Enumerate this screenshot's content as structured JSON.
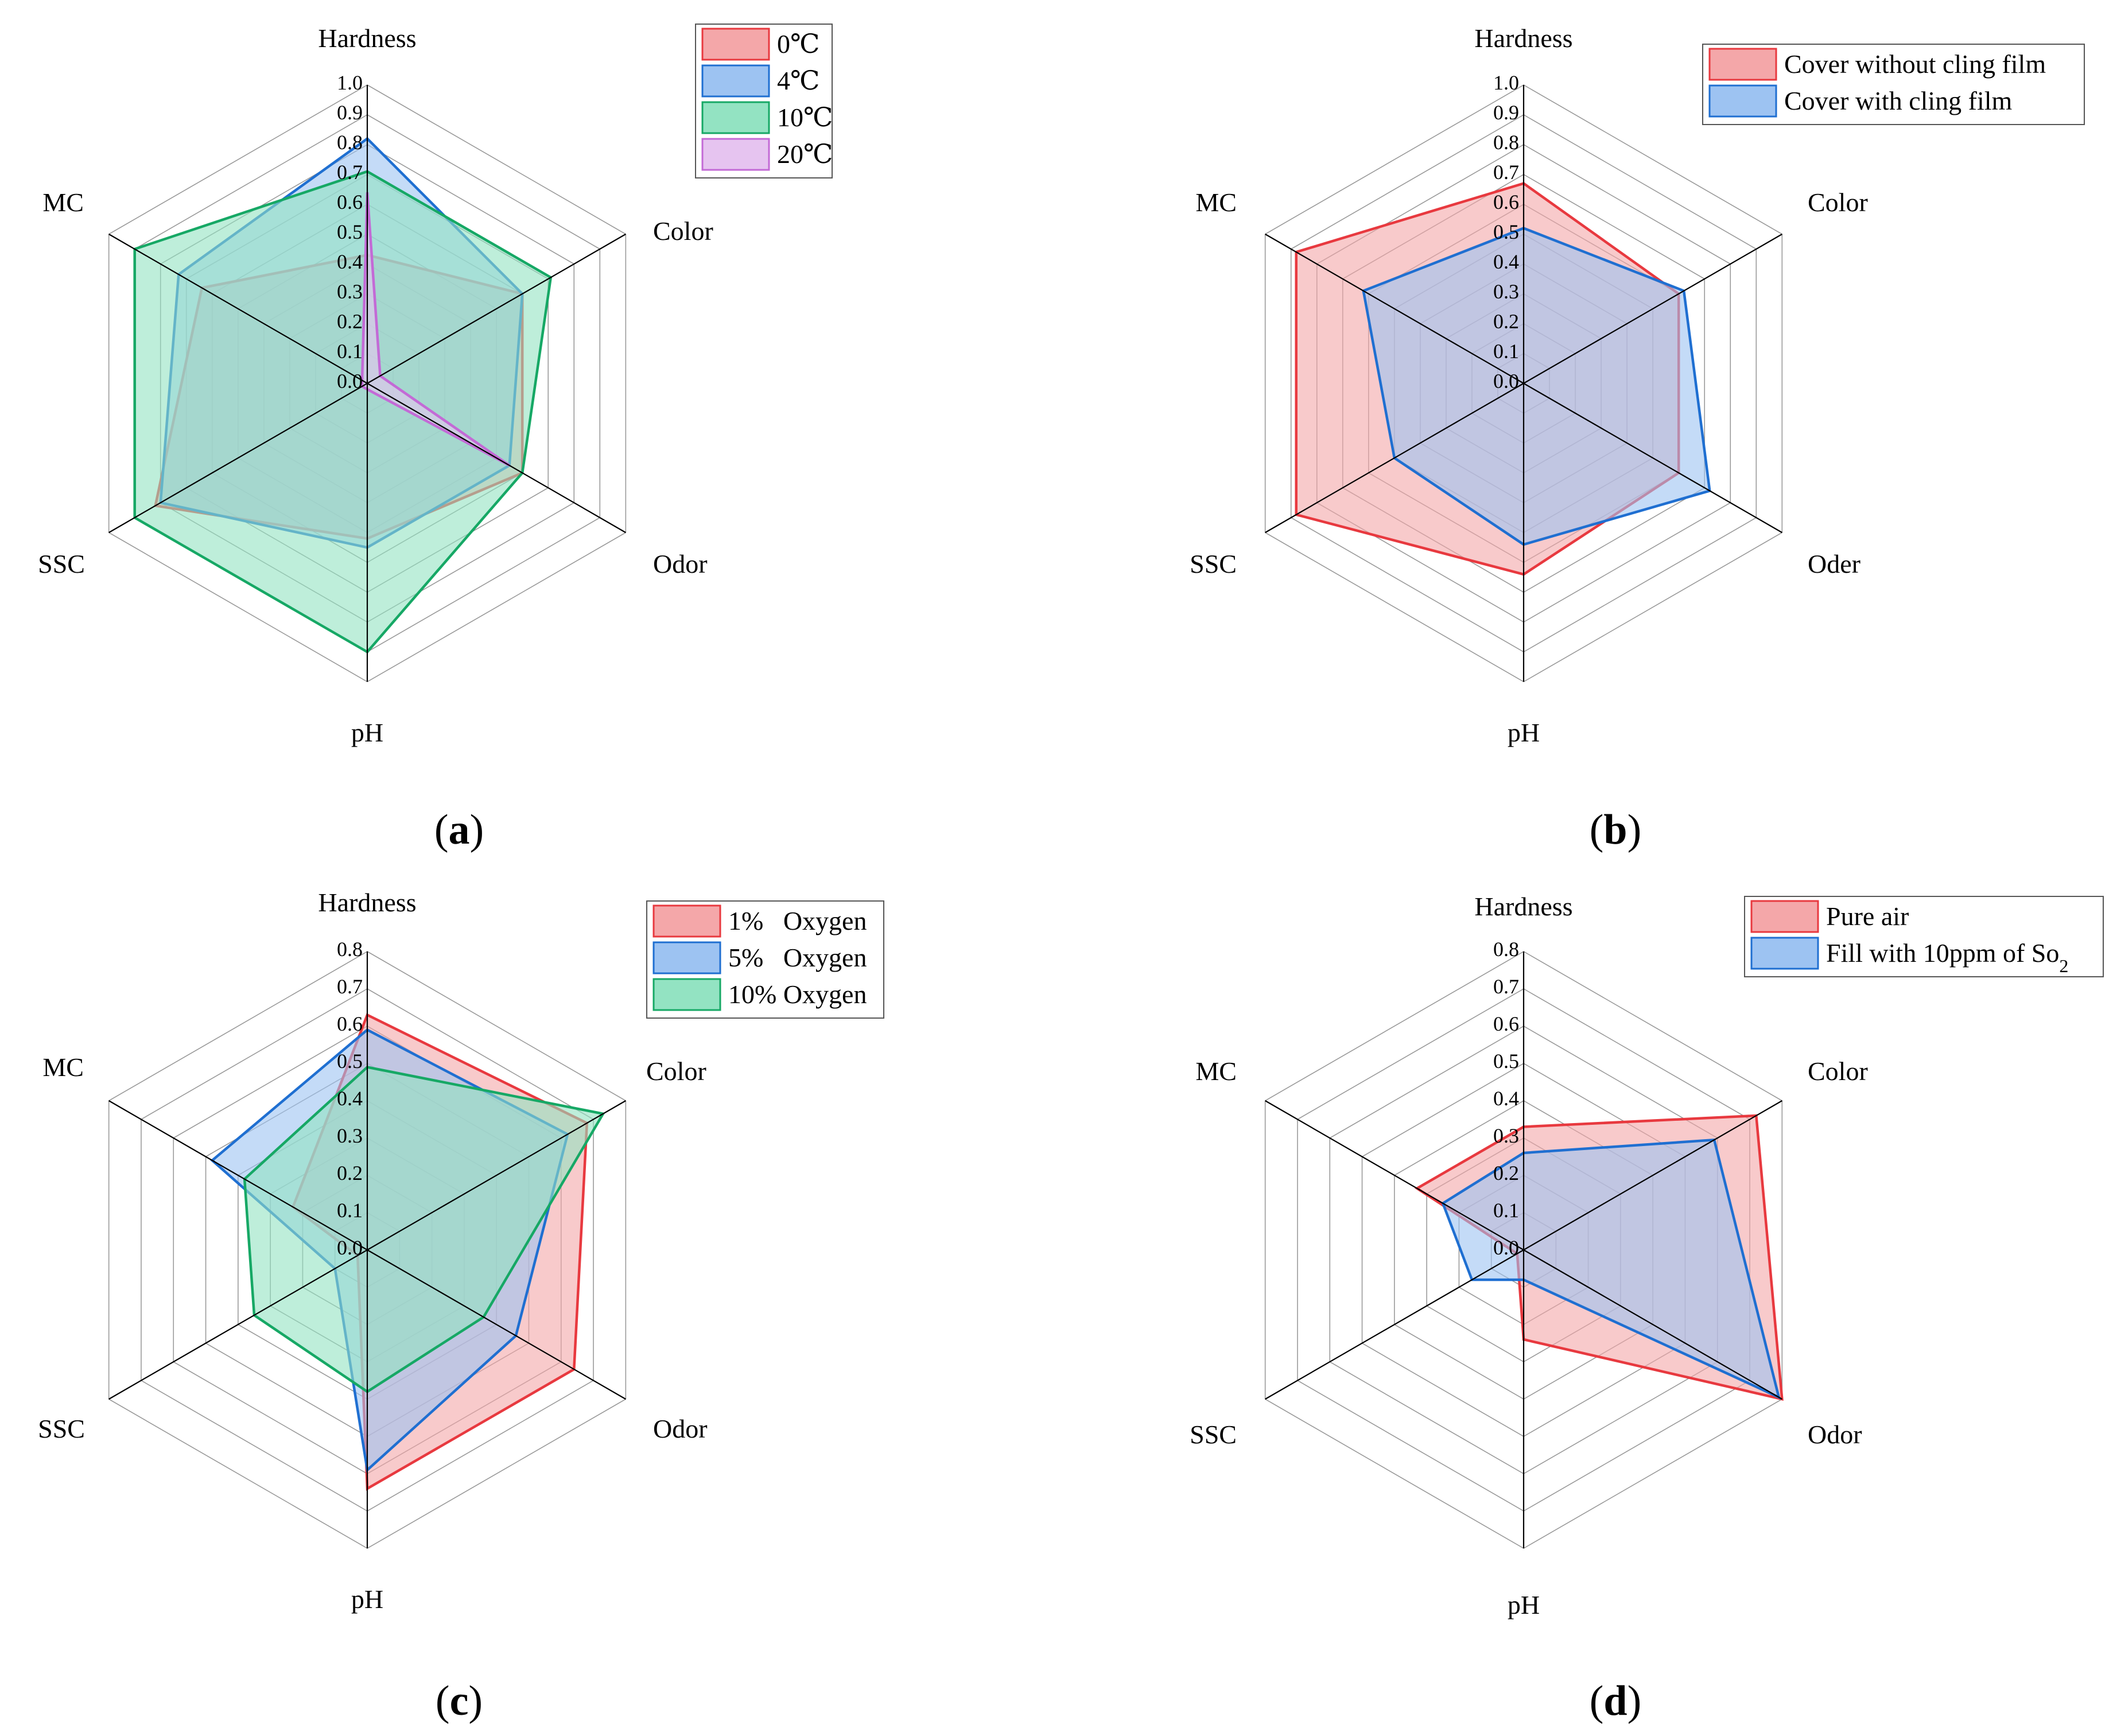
{
  "figure": {
    "series_colors": [
      {
        "fill": "#f4a7a9",
        "stroke": "#e8393f"
      },
      {
        "fill": "#9dc3f2",
        "stroke": "#1f6fd1"
      },
      {
        "fill": "#93e3c2",
        "stroke": "#16a865"
      },
      {
        "fill": "#e6c4f0",
        "stroke": "#c36ad6"
      }
    ],
    "overlap_fill": "#a9a4d6"
  },
  "chart_data": [
    {
      "type": "radar",
      "panel_label": "a",
      "axes": [
        "Hardness",
        "Color",
        "Odor",
        "pH",
        "SSC",
        "MC"
      ],
      "rlim": [
        0,
        1.0
      ],
      "ticks": [
        "0.0",
        "0.1",
        "0.2",
        "0.3",
        "0.4",
        "0.5",
        "0.6",
        "0.7",
        "0.8",
        "0.9",
        "1.0"
      ],
      "legend_position": "top-right",
      "series": [
        {
          "name": "0℃",
          "values": [
            0.43,
            0.6,
            0.6,
            0.52,
            0.82,
            0.64
          ]
        },
        {
          "name": "4℃",
          "values": [
            0.82,
            0.6,
            0.55,
            0.55,
            0.8,
            0.73
          ]
        },
        {
          "name": "10℃",
          "values": [
            0.71,
            0.71,
            0.6,
            0.9,
            0.9,
            0.9
          ]
        },
        {
          "name": "20℃",
          "values": [
            0.64,
            0.05,
            0.55,
            0.02,
            0.02,
            0.02
          ]
        }
      ]
    },
    {
      "type": "radar",
      "panel_label": "b",
      "axes": [
        "Hardness",
        "Color",
        "Oder",
        "pH",
        "SSC",
        "MC"
      ],
      "rlim": [
        0,
        1.0
      ],
      "ticks": [
        "0.0",
        "0.1",
        "0.2",
        "0.3",
        "0.4",
        "0.5",
        "0.6",
        "0.7",
        "0.8",
        "0.9",
        "1.0"
      ],
      "legend_position": "top-right",
      "series": [
        {
          "name": "Cover without cling film",
          "values": [
            0.67,
            0.6,
            0.6,
            0.64,
            0.88,
            0.88
          ]
        },
        {
          "name": "Cover with cling film",
          "values": [
            0.52,
            0.62,
            0.72,
            0.54,
            0.5,
            0.62
          ]
        }
      ]
    },
    {
      "type": "radar",
      "panel_label": "c",
      "axes": [
        "Hardness",
        "Color",
        "Odor",
        "pH",
        "SSC",
        "MC"
      ],
      "rlim": [
        0,
        0.8
      ],
      "ticks": [
        "0.0",
        "0.1",
        "0.2",
        "0.3",
        "0.4",
        "0.5",
        "0.6",
        "0.7",
        "0.8"
      ],
      "legend_position": "top-right",
      "series": [
        {
          "name": "1%   Oxygen",
          "values": [
            0.63,
            0.68,
            0.64,
            0.64,
            0.03,
            0.23
          ]
        },
        {
          "name": "5%   Oxygen",
          "values": [
            0.59,
            0.62,
            0.46,
            0.59,
            0.1,
            0.48
          ]
        },
        {
          "name": "10% Oxygen",
          "values": [
            0.49,
            0.73,
            0.36,
            0.38,
            0.35,
            0.38
          ]
        }
      ]
    },
    {
      "type": "radar",
      "panel_label": "d",
      "axes": [
        "Hardness",
        "Color",
        "Odor",
        "pH",
        "SSC",
        "MC"
      ],
      "rlim": [
        0,
        0.8
      ],
      "ticks": [
        "0.0",
        "0.1",
        "0.2",
        "0.3",
        "0.4",
        "0.5",
        "0.6",
        "0.7",
        "0.8"
      ],
      "legend_position": "top-right",
      "series": [
        {
          "name": "Pure air",
          "values": [
            0.33,
            0.72,
            0.8,
            0.24,
            0.02,
            0.33
          ]
        },
        {
          "name": "Fill with 10ppm of So",
          "subscript": "2",
          "values": [
            0.26,
            0.59,
            0.79,
            0.08,
            0.16,
            0.25
          ]
        }
      ]
    }
  ]
}
